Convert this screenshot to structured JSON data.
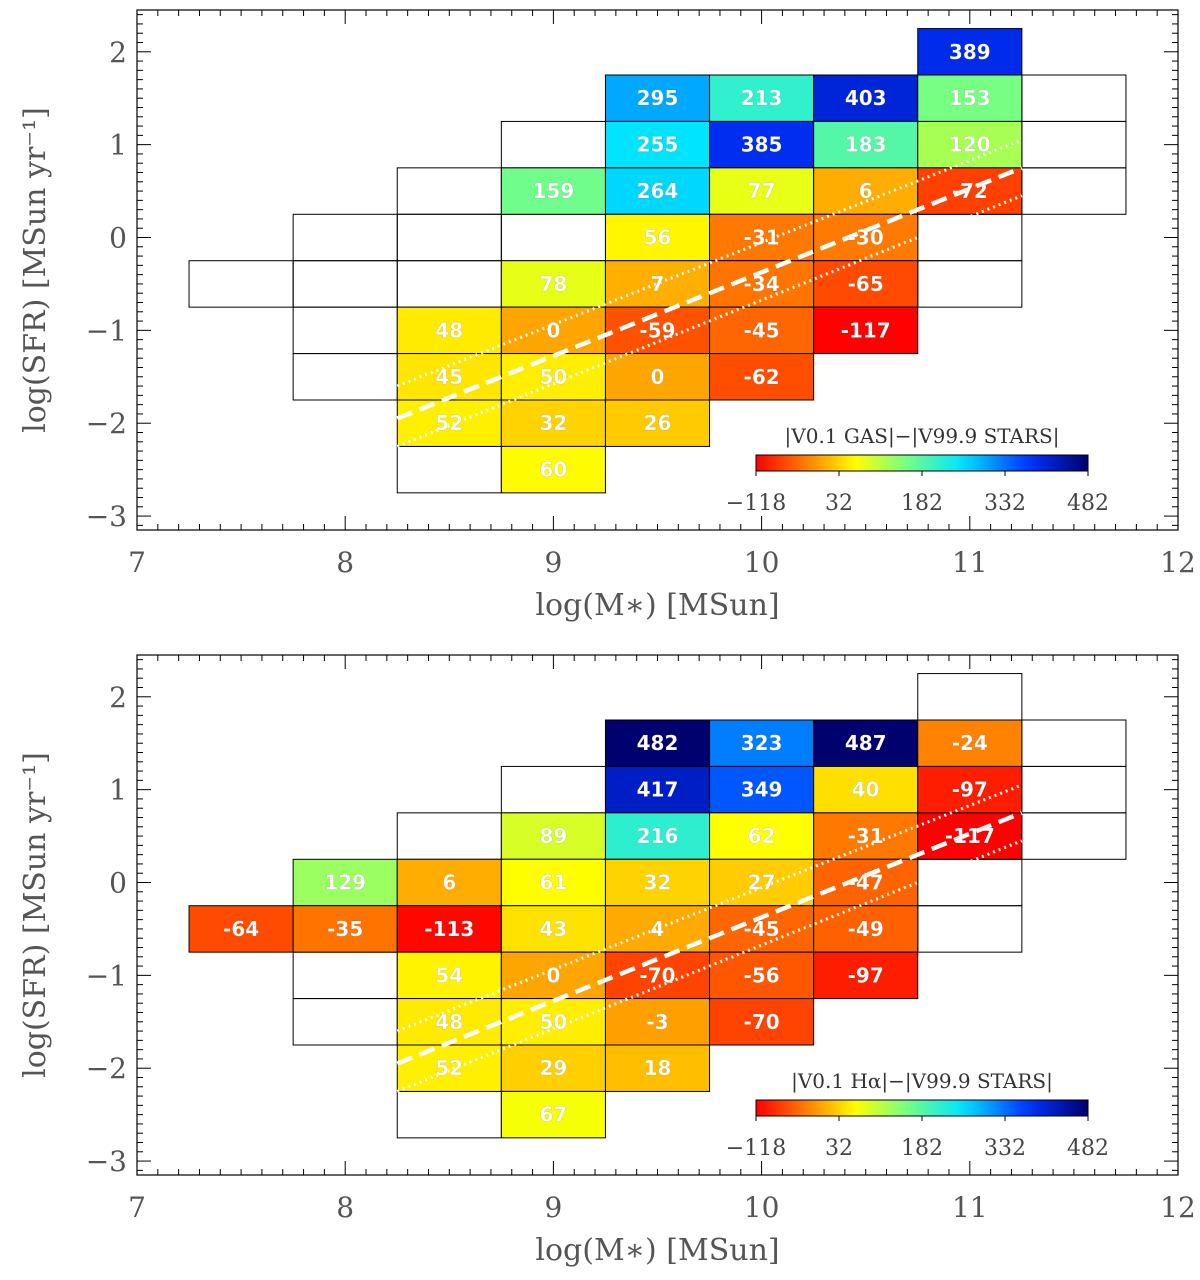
{
  "chart_data": [
    {
      "type": "heatmap",
      "panel": "top",
      "xlabel": "log(M∗) [MSun]",
      "ylabel": "log(SFR) [MSun yr⁻¹]",
      "xlim": [
        7,
        12
      ],
      "ylim": [
        -3.15,
        2.45
      ],
      "xticks": [
        "7",
        "8",
        "9",
        "10",
        "11",
        "12"
      ],
      "yticks": [
        "−3",
        "−2",
        "−1",
        "0",
        "1",
        "2"
      ],
      "colorbar": {
        "title": "|V0.1 GAS|−|V99.9 STARS|",
        "range": [
          -118,
          482
        ],
        "ticks": [
          "−118",
          "32",
          "182",
          "332",
          "482"
        ]
      },
      "bin_size": {
        "mass": 0.5,
        "sfr": 0.5
      },
      "grid_cells": [
        [
          7.5,
          -0.5
        ],
        [
          8,
          0
        ],
        [
          8,
          -0.5
        ],
        [
          8,
          -1
        ],
        [
          8,
          -1.5
        ],
        [
          8.5,
          0.5
        ],
        [
          8.5,
          0
        ],
        [
          8.5,
          -0.5
        ],
        [
          8.5,
          -2.5
        ],
        [
          9,
          1
        ],
        [
          9,
          0
        ],
        [
          10.5,
          -0.5
        ],
        [
          11,
          1.5
        ],
        [
          11,
          1
        ],
        [
          11,
          0.5
        ],
        [
          11,
          0
        ],
        [
          11,
          -0.5
        ],
        [
          11.5,
          1.5
        ],
        [
          11.5,
          1
        ],
        [
          11.5,
          0.5
        ]
      ],
      "cells": [
        {
          "mass": 11,
          "sfr": 2,
          "value": 389
        },
        {
          "mass": 9.5,
          "sfr": 1.5,
          "value": 295
        },
        {
          "mass": 10,
          "sfr": 1.5,
          "value": 213
        },
        {
          "mass": 10.5,
          "sfr": 1.5,
          "value": 403
        },
        {
          "mass": 11,
          "sfr": 1.5,
          "value": 153
        },
        {
          "mass": 9.5,
          "sfr": 1,
          "value": 255
        },
        {
          "mass": 10,
          "sfr": 1,
          "value": 385
        },
        {
          "mass": 10.5,
          "sfr": 1,
          "value": 183
        },
        {
          "mass": 11,
          "sfr": 1,
          "value": 120
        },
        {
          "mass": 9,
          "sfr": 0.5,
          "value": 159
        },
        {
          "mass": 9.5,
          "sfr": 0.5,
          "value": 264
        },
        {
          "mass": 10,
          "sfr": 0.5,
          "value": 77
        },
        {
          "mass": 10.5,
          "sfr": 0.5,
          "value": 6
        },
        {
          "mass": 11,
          "sfr": 0.5,
          "value": -72
        },
        {
          "mass": 9.5,
          "sfr": 0,
          "value": 56
        },
        {
          "mass": 10,
          "sfr": 0,
          "value": -31
        },
        {
          "mass": 10.5,
          "sfr": 0,
          "value": -30
        },
        {
          "mass": 9,
          "sfr": -0.5,
          "value": 78
        },
        {
          "mass": 9.5,
          "sfr": -0.5,
          "value": 7
        },
        {
          "mass": 10,
          "sfr": -0.5,
          "value": -34
        },
        {
          "mass": 10.5,
          "sfr": -0.5,
          "value": -65
        },
        {
          "mass": 8.5,
          "sfr": -1,
          "value": 48
        },
        {
          "mass": 9,
          "sfr": -1,
          "value": 0
        },
        {
          "mass": 9.5,
          "sfr": -1,
          "value": -59
        },
        {
          "mass": 10,
          "sfr": -1,
          "value": -45
        },
        {
          "mass": 10.5,
          "sfr": -1,
          "value": -117
        },
        {
          "mass": 8.5,
          "sfr": -1.5,
          "value": 45
        },
        {
          "mass": 9,
          "sfr": -1.5,
          "value": 50
        },
        {
          "mass": 9.5,
          "sfr": -1.5,
          "value": 0
        },
        {
          "mass": 10,
          "sfr": -1.5,
          "value": -62
        },
        {
          "mass": 8.5,
          "sfr": -2,
          "value": 52
        },
        {
          "mass": 9,
          "sfr": -2,
          "value": 32
        },
        {
          "mass": 9.5,
          "sfr": -2,
          "value": 26
        },
        {
          "mass": 9,
          "sfr": -2.5,
          "value": 60
        }
      ]
    },
    {
      "type": "heatmap",
      "panel": "bottom",
      "xlabel": "log(M∗) [MSun]",
      "ylabel": "log(SFR) [MSun yr⁻¹]",
      "xlim": [
        7,
        12
      ],
      "ylim": [
        -3.15,
        2.45
      ],
      "xticks": [
        "7",
        "8",
        "9",
        "10",
        "11",
        "12"
      ],
      "yticks": [
        "−3",
        "−2",
        "−1",
        "0",
        "1",
        "2"
      ],
      "colorbar": {
        "title": "|V0.1 Hα|−|V99.9 STARS|",
        "range": [
          -118,
          482
        ],
        "ticks": [
          "−118",
          "32",
          "182",
          "332",
          "482"
        ]
      },
      "bin_size": {
        "mass": 0.5,
        "sfr": 0.5
      },
      "grid_cells": [
        [
          8,
          -1
        ],
        [
          8,
          -1.5
        ],
        [
          8.5,
          0.5
        ],
        [
          8.5,
          -2.5
        ],
        [
          9,
          1
        ],
        [
          10.5,
          -0.5
        ],
        [
          11,
          2
        ],
        [
          11,
          0
        ],
        [
          11,
          -0.5
        ],
        [
          11.5,
          1.5
        ],
        [
          11.5,
          1
        ],
        [
          11.5,
          0.5
        ]
      ],
      "cells": [
        {
          "mass": 9.5,
          "sfr": 1.5,
          "value": 482
        },
        {
          "mass": 10,
          "sfr": 1.5,
          "value": 323
        },
        {
          "mass": 10.5,
          "sfr": 1.5,
          "value": 487
        },
        {
          "mass": 11,
          "sfr": 1.5,
          "value": -24
        },
        {
          "mass": 9.5,
          "sfr": 1,
          "value": 417
        },
        {
          "mass": 10,
          "sfr": 1,
          "value": 349
        },
        {
          "mass": 10.5,
          "sfr": 1,
          "value": 40
        },
        {
          "mass": 11,
          "sfr": 1,
          "value": -97
        },
        {
          "mass": 9,
          "sfr": 0.5,
          "value": 89
        },
        {
          "mass": 9.5,
          "sfr": 0.5,
          "value": 216
        },
        {
          "mass": 10,
          "sfr": 0.5,
          "value": 62
        },
        {
          "mass": 10.5,
          "sfr": 0.5,
          "value": -31
        },
        {
          "mass": 11,
          "sfr": 0.5,
          "value": -117
        },
        {
          "mass": 8,
          "sfr": 0,
          "value": 129
        },
        {
          "mass": 8.5,
          "sfr": 0,
          "value": 6
        },
        {
          "mass": 9,
          "sfr": 0,
          "value": 61
        },
        {
          "mass": 9.5,
          "sfr": 0,
          "value": 32
        },
        {
          "mass": 10,
          "sfr": 0,
          "value": 27
        },
        {
          "mass": 10.5,
          "sfr": 0,
          "value": -47
        },
        {
          "mass": 7.5,
          "sfr": -0.5,
          "value": -64
        },
        {
          "mass": 8,
          "sfr": -0.5,
          "value": -35
        },
        {
          "mass": 8.5,
          "sfr": -0.5,
          "value": -113
        },
        {
          "mass": 9,
          "sfr": -0.5,
          "value": 43
        },
        {
          "mass": 9.5,
          "sfr": -0.5,
          "value": 4
        },
        {
          "mass": 10,
          "sfr": -0.5,
          "value": -45
        },
        {
          "mass": 10.5,
          "sfr": -0.5,
          "value": -49
        },
        {
          "mass": 8.5,
          "sfr": -1,
          "value": 54
        },
        {
          "mass": 9,
          "sfr": -1,
          "value": 0
        },
        {
          "mass": 9.5,
          "sfr": -1,
          "value": -70
        },
        {
          "mass": 10,
          "sfr": -1,
          "value": -56
        },
        {
          "mass": 10.5,
          "sfr": -1,
          "value": -97
        },
        {
          "mass": 8.5,
          "sfr": -1.5,
          "value": 48
        },
        {
          "mass": 9,
          "sfr": -1.5,
          "value": 50
        },
        {
          "mass": 9.5,
          "sfr": -1.5,
          "value": -3
        },
        {
          "mass": 10,
          "sfr": -1.5,
          "value": -70
        },
        {
          "mass": 8.5,
          "sfr": -2,
          "value": 52
        },
        {
          "mass": 9,
          "sfr": -2,
          "value": 29
        },
        {
          "mass": 9.5,
          "sfr": -2,
          "value": 18
        },
        {
          "mass": 9,
          "sfr": -2.5,
          "value": 67
        }
      ]
    }
  ],
  "main_sequence": {
    "dashed": [
      [
        8.25,
        -1.95
      ],
      [
        11.25,
        0.75
      ]
    ],
    "dotted_upper": [
      [
        8.25,
        -1.6
      ],
      [
        11.25,
        1.05
      ]
    ],
    "dotted_lower": [
      [
        8.25,
        -2.25
      ],
      [
        11.25,
        0.45
      ]
    ]
  },
  "colors": {
    "frame": "#000000",
    "text": "#555555",
    "overlay": "#ffffff"
  }
}
